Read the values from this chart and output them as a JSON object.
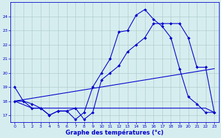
{
  "xlabel": "Graphe des températures (°c)",
  "background_color": "#d6edef",
  "grid_color": "#b0cccc",
  "line_color": "#0000cc",
  "xlim": [
    -0.5,
    23.5
  ],
  "ylim": [
    16.5,
    25.0
  ],
  "xticks": [
    0,
    1,
    2,
    3,
    4,
    5,
    6,
    7,
    8,
    9,
    10,
    11,
    12,
    13,
    14,
    15,
    16,
    17,
    18,
    19,
    20,
    21,
    22,
    23
  ],
  "yticks": [
    17,
    18,
    19,
    20,
    21,
    22,
    23,
    24
  ],
  "series1_x": [
    0,
    1,
    2,
    3,
    4,
    5,
    6,
    7,
    8,
    9,
    10,
    11,
    12,
    13,
    14,
    15,
    16,
    17,
    18,
    19,
    20,
    21,
    22,
    23
  ],
  "series1_y": [
    19.0,
    18.0,
    17.8,
    17.5,
    17.0,
    17.3,
    17.3,
    16.7,
    17.2,
    19.0,
    20.0,
    21.0,
    22.9,
    23.0,
    24.1,
    24.5,
    23.8,
    23.3,
    22.5,
    20.3,
    18.3,
    17.8,
    17.2,
    17.2
  ],
  "series2_x": [
    0,
    1,
    2,
    3,
    4,
    5,
    6,
    7,
    8,
    9,
    10,
    11,
    12,
    13,
    14,
    15,
    16,
    17,
    18,
    19,
    20,
    21,
    22,
    23
  ],
  "series2_y": [
    18.0,
    18.0,
    17.5,
    17.5,
    17.5,
    17.5,
    17.5,
    17.5,
    17.5,
    17.5,
    17.5,
    17.5,
    17.5,
    17.5,
    17.5,
    17.5,
    17.5,
    17.5,
    17.5,
    17.5,
    17.5,
    17.5,
    17.5,
    17.2
  ],
  "series3_x": [
    0,
    2,
    3,
    4,
    5,
    6,
    7,
    8,
    9,
    10,
    11,
    12,
    13,
    14,
    15,
    16,
    17,
    18,
    19,
    20,
    21,
    22,
    23
  ],
  "series3_y": [
    18.0,
    17.5,
    17.5,
    17.0,
    17.3,
    17.3,
    17.5,
    16.7,
    17.2,
    19.5,
    20.0,
    20.5,
    21.5,
    22.0,
    22.5,
    23.5,
    23.5,
    23.5,
    23.5,
    22.5,
    20.4,
    20.4,
    17.2
  ],
  "series4_x": [
    0,
    23
  ],
  "series4_y": [
    18.0,
    20.3
  ]
}
